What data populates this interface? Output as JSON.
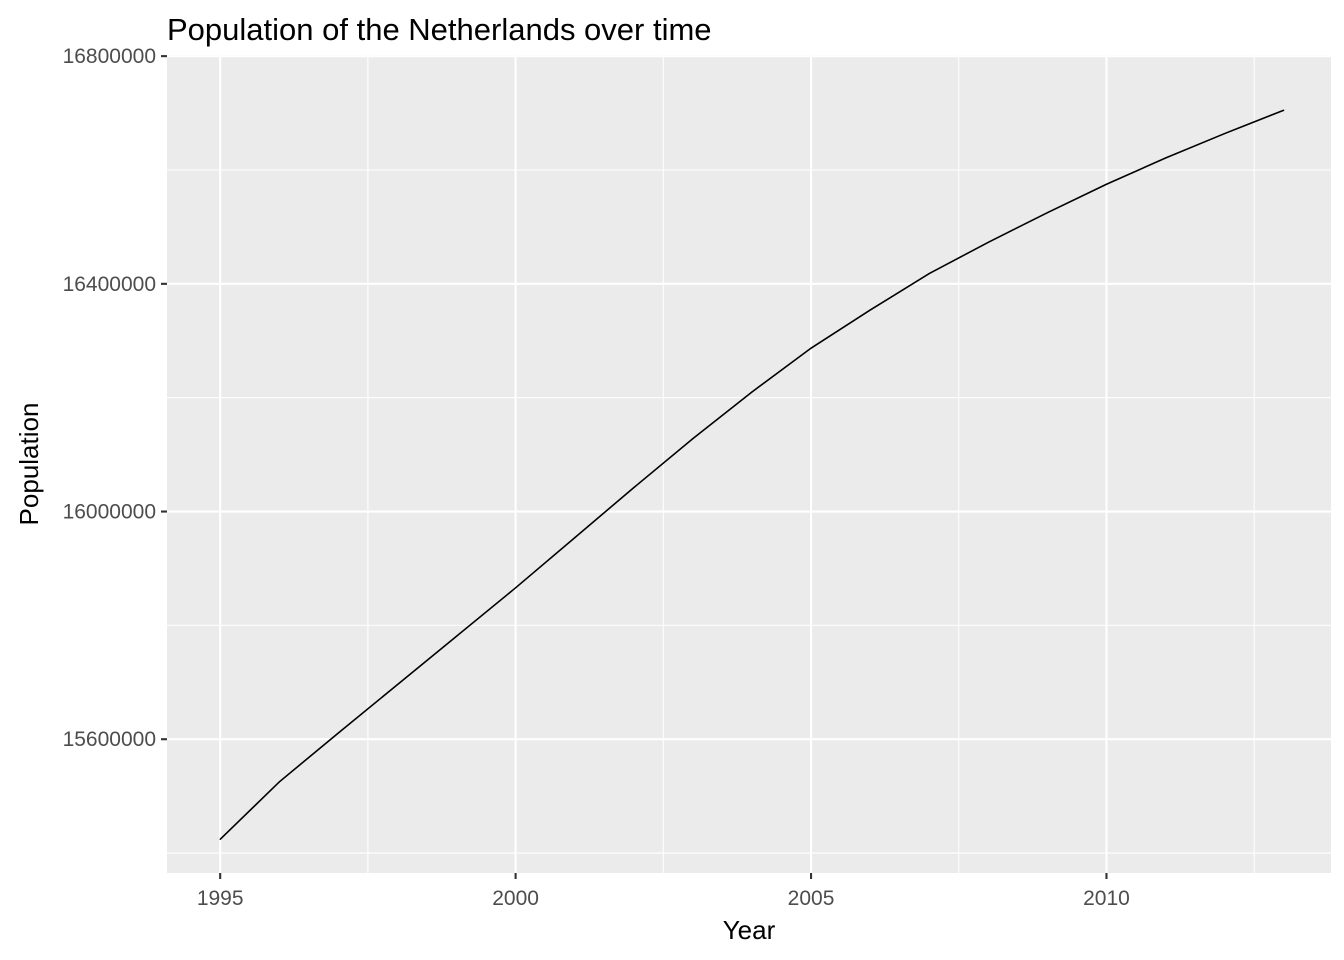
{
  "chart_data": {
    "type": "line",
    "title": "Population of the Netherlands over time",
    "xlabel": "Year",
    "ylabel": "Population",
    "x": [
      1995,
      1996,
      1997,
      1998,
      1999,
      2000,
      2001,
      2002,
      2003,
      2004,
      2005,
      2006,
      2007,
      2008,
      2009,
      2010,
      2011,
      2012,
      2013
    ],
    "series": [
      {
        "values": [
          15424122,
          15525000,
          15611000,
          15696000,
          15781000,
          15866000,
          15954000,
          16042000,
          16128000,
          16210000,
          16287000,
          16354000,
          16418000,
          16473000,
          16525000,
          16575000,
          16621000,
          16664000,
          16705000
        ]
      }
    ],
    "xlim": [
      1994.1,
      2013.8
    ],
    "ylim": [
      15365000,
      16802000
    ],
    "x_ticks": [
      1995,
      2000,
      2005,
      2010
    ],
    "x_tick_labels": [
      "1995",
      "2000",
      "2005",
      "2010"
    ],
    "y_ticks": [
      15600000,
      16000000,
      16400000,
      16800000
    ],
    "y_tick_labels": [
      "15600000",
      "16000000",
      "16400000",
      "16800000"
    ],
    "grid": true,
    "legend": "none",
    "colors": {
      "panel": "#ebebeb",
      "grid": "#ffffff",
      "line": "#000000",
      "tick_text": "#4d4d4d"
    }
  }
}
